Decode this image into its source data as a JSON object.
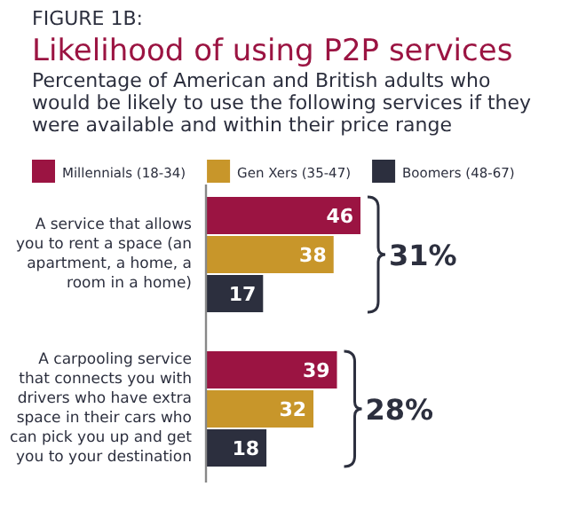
{
  "chart_data": {
    "type": "bar",
    "orientation": "horizontal",
    "title": "Likelihood of using P2P services",
    "subtitle": "Percentage of American and British adults who would be likely to use the following services if they were available and within their price range",
    "categories": [
      "A service that allows you to rent a space (an apartment, a home, a room in a home)",
      "A carpooling service that connects you with drivers who have extra space in their cars who can pick you up and get you to your destination"
    ],
    "series": [
      {
        "name": "Millennials (18-34)",
        "color": "#9b1442",
        "values": [
          46,
          39
        ]
      },
      {
        "name": "Gen Xers (35-47)",
        "color": "#c8962a",
        "values": [
          38,
          32
        ]
      },
      {
        "name": "Boomers (48-67)",
        "color": "#2c2f3e",
        "values": [
          17,
          18
        ]
      }
    ],
    "data_labels": true,
    "legend": "top",
    "annotations": [
      "FIGURE 1B:",
      "31%",
      "28%"
    ]
  }
}
